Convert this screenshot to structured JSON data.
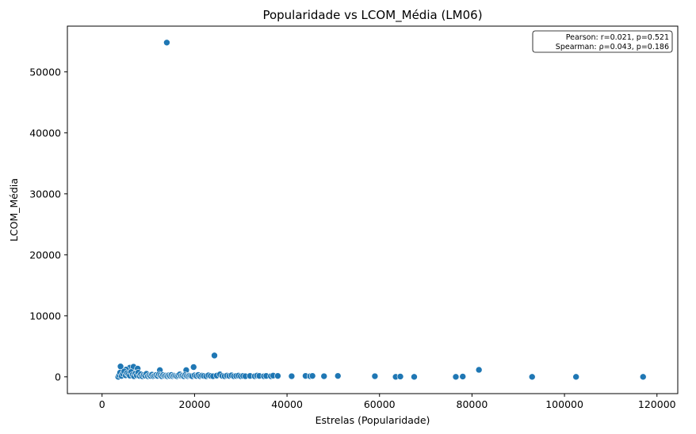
{
  "chart_data": {
    "type": "scatter",
    "title": "Popularidade vs LCOM_Média (LM06)",
    "xlabel": "Estrelas (Popularidade)",
    "ylabel": "LCOM_Média",
    "xlim": [
      -7500,
      124500
    ],
    "ylim": [
      -2750,
      57500
    ],
    "xticks": [
      0,
      20000,
      40000,
      60000,
      80000,
      100000,
      120000
    ],
    "yticks": [
      0,
      10000,
      20000,
      30000,
      40000,
      50000
    ],
    "grid": false,
    "point_color": "#1f77b4",
    "annotation": {
      "position": "top-right",
      "lines": [
        "Pearson: r=0.021, p=0.521",
        "Spearman: ρ=0.043, p=0.186"
      ]
    },
    "points": [
      [
        14000,
        54800
      ],
      [
        24300,
        3500
      ],
      [
        81500,
        1150
      ],
      [
        18200,
        1100
      ],
      [
        19800,
        1600
      ],
      [
        4000,
        1700
      ],
      [
        6000,
        1500
      ],
      [
        6800,
        1650
      ],
      [
        7700,
        1350
      ],
      [
        5200,
        1200
      ],
      [
        12500,
        1100
      ],
      [
        3500,
        0
      ],
      [
        3700,
        300
      ],
      [
        3900,
        700
      ],
      [
        4200,
        150
      ],
      [
        4500,
        500
      ],
      [
        4800,
        900
      ],
      [
        5100,
        250
      ],
      [
        5400,
        600
      ],
      [
        5700,
        400
      ],
      [
        6000,
        200
      ],
      [
        6300,
        800
      ],
      [
        6600,
        350
      ],
      [
        6900,
        100
      ],
      [
        7200,
        550
      ],
      [
        7500,
        250
      ],
      [
        7800,
        700
      ],
      [
        8100,
        150
      ],
      [
        8400,
        400
      ],
      [
        8700,
        100
      ],
      [
        9000,
        300
      ],
      [
        9300,
        200
      ],
      [
        9600,
        500
      ],
      [
        9900,
        100
      ],
      [
        10200,
        250
      ],
      [
        10500,
        150
      ],
      [
        10800,
        350
      ],
      [
        11100,
        100
      ],
      [
        11400,
        200
      ],
      [
        11700,
        300
      ],
      [
        12000,
        150
      ],
      [
        12300,
        400
      ],
      [
        12600,
        250
      ],
      [
        12900,
        100
      ],
      [
        13200,
        300
      ],
      [
        13500,
        150
      ],
      [
        13800,
        200
      ],
      [
        14100,
        100
      ],
      [
        14400,
        250
      ],
      [
        14700,
        150
      ],
      [
        15000,
        300
      ],
      [
        15300,
        100
      ],
      [
        15600,
        200
      ],
      [
        15900,
        150
      ],
      [
        16200,
        100
      ],
      [
        16500,
        250
      ],
      [
        16800,
        400
      ],
      [
        17100,
        150
      ],
      [
        17400,
        200
      ],
      [
        17700,
        100
      ],
      [
        18000,
        300
      ],
      [
        18300,
        150
      ],
      [
        18600,
        100
      ],
      [
        18900,
        200
      ],
      [
        19200,
        150
      ],
      [
        19500,
        100
      ],
      [
        20000,
        250
      ],
      [
        20400,
        150
      ],
      [
        20800,
        300
      ],
      [
        21200,
        100
      ],
      [
        21600,
        200
      ],
      [
        22000,
        150
      ],
      [
        22500,
        100
      ],
      [
        23000,
        250
      ],
      [
        23500,
        150
      ],
      [
        24000,
        100
      ],
      [
        24800,
        200
      ],
      [
        25500,
        400
      ],
      [
        26000,
        150
      ],
      [
        26500,
        100
      ],
      [
        27000,
        200
      ],
      [
        27500,
        150
      ],
      [
        28000,
        250
      ],
      [
        28500,
        100
      ],
      [
        29000,
        150
      ],
      [
        29500,
        200
      ],
      [
        30000,
        100
      ],
      [
        30500,
        150
      ],
      [
        31000,
        100
      ],
      [
        32000,
        150
      ],
      [
        33000,
        100
      ],
      [
        33500,
        200
      ],
      [
        34000,
        150
      ],
      [
        35000,
        100
      ],
      [
        35500,
        150
      ],
      [
        36500,
        100
      ],
      [
        37000,
        200
      ],
      [
        38000,
        150
      ],
      [
        41000,
        100
      ],
      [
        44000,
        150
      ],
      [
        45000,
        100
      ],
      [
        45500,
        150
      ],
      [
        48000,
        100
      ],
      [
        51000,
        150
      ],
      [
        59000,
        100
      ],
      [
        63500,
        0
      ],
      [
        64500,
        50
      ],
      [
        67500,
        0
      ],
      [
        76500,
        0
      ],
      [
        78000,
        50
      ],
      [
        93000,
        0
      ],
      [
        102500,
        0
      ],
      [
        117000,
        0
      ]
    ]
  }
}
